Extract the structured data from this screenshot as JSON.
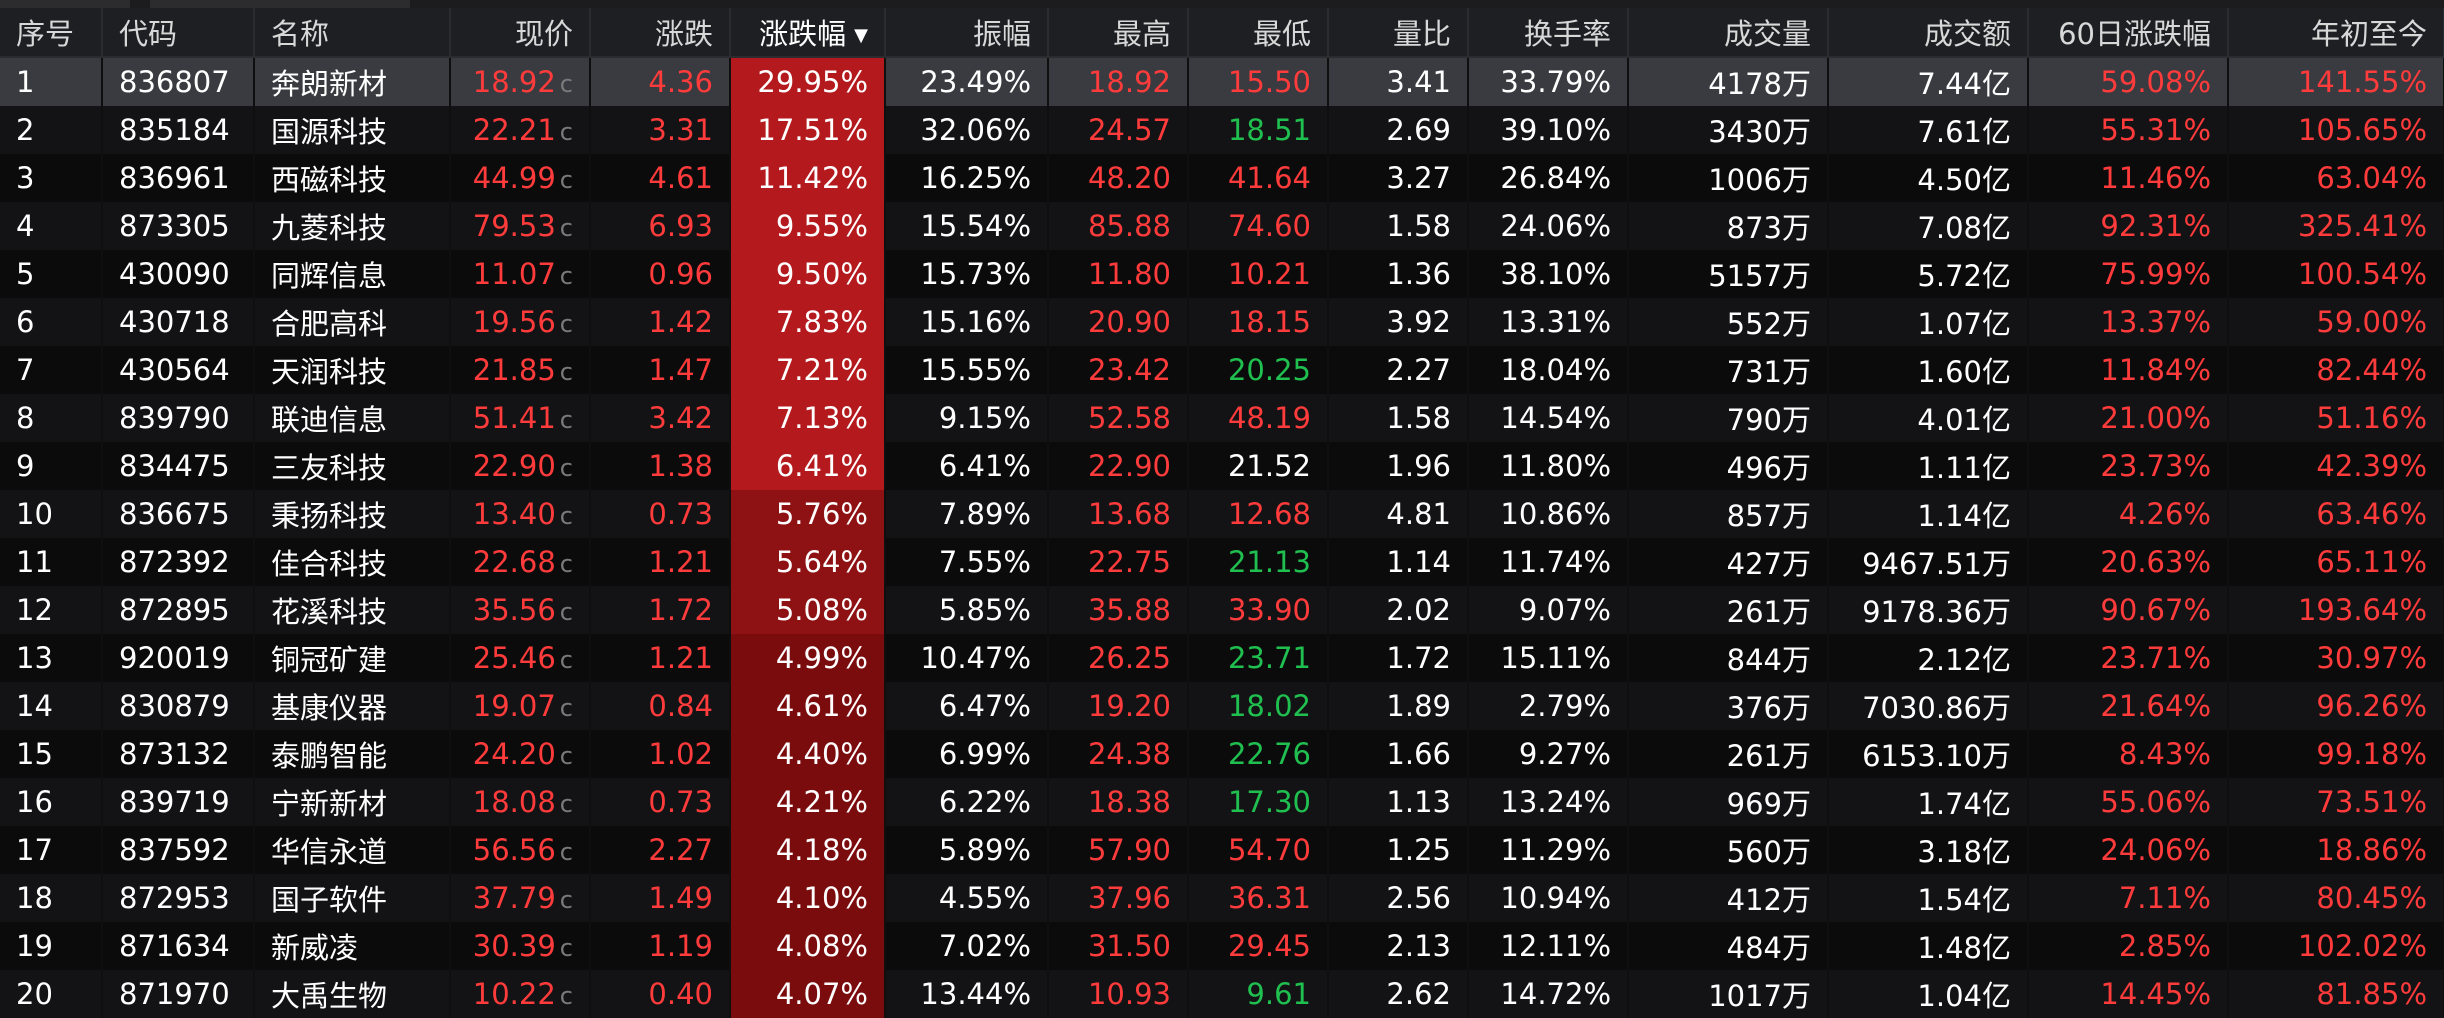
{
  "columns": [
    "序号",
    "代码",
    "名称",
    "现价",
    "涨跌",
    "涨跌幅",
    "振幅",
    "最高",
    "最低",
    "量比",
    "换手率",
    "成交量",
    "成交额",
    "60日涨跌幅",
    "年初至今"
  ],
  "sorted_column": "涨跌幅",
  "price_suffix": "c",
  "colors": {
    "up": "#ff3b3b",
    "down": "#20c050",
    "flat": "#ffffff",
    "heat_strong": "#b3191d",
    "heat_medium": "#8e1214",
    "heat_weak": "#7a0c0e",
    "header_bg": "#1e1f22",
    "row_selected": "#3a3b40"
  },
  "rows": [
    {
      "seq": "1",
      "code": "836807",
      "name": "奔朗新材",
      "price": "18.92",
      "change": "4.36",
      "pct": "29.95%",
      "amp": "23.49%",
      "high": "18.92",
      "low": "15.50",
      "lowDir": "up",
      "vr": "3.41",
      "turnover": "33.79%",
      "vol": "4178万",
      "amount": "7.44亿",
      "d60": "59.08%",
      "ytd": "141.55%",
      "heat": "strong"
    },
    {
      "seq": "2",
      "code": "835184",
      "name": "国源科技",
      "price": "22.21",
      "change": "3.31",
      "pct": "17.51%",
      "amp": "32.06%",
      "high": "24.57",
      "low": "18.51",
      "lowDir": "down",
      "vr": "2.69",
      "turnover": "39.10%",
      "vol": "3430万",
      "amount": "7.61亿",
      "d60": "55.31%",
      "ytd": "105.65%",
      "heat": "strong"
    },
    {
      "seq": "3",
      "code": "836961",
      "name": "西磁科技",
      "price": "44.99",
      "change": "4.61",
      "pct": "11.42%",
      "amp": "16.25%",
      "high": "48.20",
      "low": "41.64",
      "lowDir": "up",
      "vr": "3.27",
      "turnover": "26.84%",
      "vol": "1006万",
      "amount": "4.50亿",
      "d60": "11.46%",
      "ytd": "63.04%",
      "heat": "strong"
    },
    {
      "seq": "4",
      "code": "873305",
      "name": "九菱科技",
      "price": "79.53",
      "change": "6.93",
      "pct": "9.55%",
      "amp": "15.54%",
      "high": "85.88",
      "low": "74.60",
      "lowDir": "up",
      "vr": "1.58",
      "turnover": "24.06%",
      "vol": "873万",
      "amount": "7.08亿",
      "d60": "92.31%",
      "ytd": "325.41%",
      "heat": "strong"
    },
    {
      "seq": "5",
      "code": "430090",
      "name": "同辉信息",
      "price": "11.07",
      "change": "0.96",
      "pct": "9.50%",
      "amp": "15.73%",
      "high": "11.80",
      "low": "10.21",
      "lowDir": "up",
      "vr": "1.36",
      "turnover": "38.10%",
      "vol": "5157万",
      "amount": "5.72亿",
      "d60": "75.99%",
      "ytd": "100.54%",
      "heat": "strong"
    },
    {
      "seq": "6",
      "code": "430718",
      "name": "合肥高科",
      "price": "19.56",
      "change": "1.42",
      "pct": "7.83%",
      "amp": "15.16%",
      "high": "20.90",
      "low": "18.15",
      "lowDir": "up",
      "vr": "3.92",
      "turnover": "13.31%",
      "vol": "552万",
      "amount": "1.07亿",
      "d60": "13.37%",
      "ytd": "59.00%",
      "heat": "strong"
    },
    {
      "seq": "7",
      "code": "430564",
      "name": "天润科技",
      "price": "21.85",
      "change": "1.47",
      "pct": "7.21%",
      "amp": "15.55%",
      "high": "23.42",
      "low": "20.25",
      "lowDir": "down",
      "vr": "2.27",
      "turnover": "18.04%",
      "vol": "731万",
      "amount": "1.60亿",
      "d60": "11.84%",
      "ytd": "82.44%",
      "heat": "strong"
    },
    {
      "seq": "8",
      "code": "839790",
      "name": "联迪信息",
      "price": "51.41",
      "change": "3.42",
      "pct": "7.13%",
      "amp": "9.15%",
      "high": "52.58",
      "low": "48.19",
      "lowDir": "up",
      "vr": "1.58",
      "turnover": "14.54%",
      "vol": "790万",
      "amount": "4.01亿",
      "d60": "21.00%",
      "ytd": "51.16%",
      "heat": "strong"
    },
    {
      "seq": "9",
      "code": "834475",
      "name": "三友科技",
      "price": "22.90",
      "change": "1.38",
      "pct": "6.41%",
      "amp": "6.41%",
      "high": "22.90",
      "low": "21.52",
      "lowDir": "flat",
      "vr": "1.96",
      "turnover": "11.80%",
      "vol": "496万",
      "amount": "1.11亿",
      "d60": "23.73%",
      "ytd": "42.39%",
      "heat": "strong"
    },
    {
      "seq": "10",
      "code": "836675",
      "name": "秉扬科技",
      "price": "13.40",
      "change": "0.73",
      "pct": "5.76%",
      "amp": "7.89%",
      "high": "13.68",
      "low": "12.68",
      "lowDir": "up",
      "vr": "4.81",
      "turnover": "10.86%",
      "vol": "857万",
      "amount": "1.14亿",
      "d60": "4.26%",
      "ytd": "63.46%",
      "heat": "medium"
    },
    {
      "seq": "11",
      "code": "872392",
      "name": "佳合科技",
      "price": "22.68",
      "change": "1.21",
      "pct": "5.64%",
      "amp": "7.55%",
      "high": "22.75",
      "low": "21.13",
      "lowDir": "down",
      "vr": "1.14",
      "turnover": "11.74%",
      "vol": "427万",
      "amount": "9467.51万",
      "d60": "20.63%",
      "ytd": "65.11%",
      "heat": "medium"
    },
    {
      "seq": "12",
      "code": "872895",
      "name": "花溪科技",
      "price": "35.56",
      "change": "1.72",
      "pct": "5.08%",
      "amp": "5.85%",
      "high": "35.88",
      "low": "33.90",
      "lowDir": "up",
      "vr": "2.02",
      "turnover": "9.07%",
      "vol": "261万",
      "amount": "9178.36万",
      "d60": "90.67%",
      "ytd": "193.64%",
      "heat": "medium"
    },
    {
      "seq": "13",
      "code": "920019",
      "name": "铜冠矿建",
      "price": "25.46",
      "change": "1.21",
      "pct": "4.99%",
      "amp": "10.47%",
      "high": "26.25",
      "low": "23.71",
      "lowDir": "down",
      "vr": "1.72",
      "turnover": "15.11%",
      "vol": "844万",
      "amount": "2.12亿",
      "d60": "23.71%",
      "ytd": "30.97%",
      "heat": "weak"
    },
    {
      "seq": "14",
      "code": "830879",
      "name": "基康仪器",
      "price": "19.07",
      "change": "0.84",
      "pct": "4.61%",
      "amp": "6.47%",
      "high": "19.20",
      "low": "18.02",
      "lowDir": "down",
      "vr": "1.89",
      "turnover": "2.79%",
      "vol": "376万",
      "amount": "7030.86万",
      "d60": "21.64%",
      "ytd": "96.26%",
      "heat": "weak"
    },
    {
      "seq": "15",
      "code": "873132",
      "name": "泰鹏智能",
      "price": "24.20",
      "change": "1.02",
      "pct": "4.40%",
      "amp": "6.99%",
      "high": "24.38",
      "low": "22.76",
      "lowDir": "down",
      "vr": "1.66",
      "turnover": "9.27%",
      "vol": "261万",
      "amount": "6153.10万",
      "d60": "8.43%",
      "ytd": "99.18%",
      "heat": "weak"
    },
    {
      "seq": "16",
      "code": "839719",
      "name": "宁新新材",
      "price": "18.08",
      "change": "0.73",
      "pct": "4.21%",
      "amp": "6.22%",
      "high": "18.38",
      "low": "17.30",
      "lowDir": "down",
      "vr": "1.13",
      "turnover": "13.24%",
      "vol": "969万",
      "amount": "1.74亿",
      "d60": "55.06%",
      "ytd": "73.51%",
      "heat": "weak"
    },
    {
      "seq": "17",
      "code": "837592",
      "name": "华信永道",
      "price": "56.56",
      "change": "2.27",
      "pct": "4.18%",
      "amp": "5.89%",
      "high": "57.90",
      "low": "54.70",
      "lowDir": "up",
      "vr": "1.25",
      "turnover": "11.29%",
      "vol": "560万",
      "amount": "3.18亿",
      "d60": "24.06%",
      "ytd": "18.86%",
      "heat": "weak"
    },
    {
      "seq": "18",
      "code": "872953",
      "name": "国子软件",
      "price": "37.79",
      "change": "1.49",
      "pct": "4.10%",
      "amp": "4.55%",
      "high": "37.96",
      "low": "36.31",
      "lowDir": "up",
      "vr": "2.56",
      "turnover": "10.94%",
      "vol": "412万",
      "amount": "1.54亿",
      "d60": "7.11%",
      "ytd": "80.45%",
      "heat": "weak"
    },
    {
      "seq": "19",
      "code": "871634",
      "name": "新威凌",
      "price": "30.39",
      "change": "1.19",
      "pct": "4.08%",
      "amp": "7.02%",
      "high": "31.50",
      "low": "29.45",
      "lowDir": "up",
      "vr": "2.13",
      "turnover": "12.11%",
      "vol": "484万",
      "amount": "1.48亿",
      "d60": "2.85%",
      "ytd": "102.02%",
      "heat": "weak"
    },
    {
      "seq": "20",
      "code": "871970",
      "name": "大禹生物",
      "price": "10.22",
      "change": "0.40",
      "pct": "4.07%",
      "amp": "13.44%",
      "high": "10.93",
      "low": "9.61",
      "lowDir": "down",
      "vr": "2.62",
      "turnover": "14.72%",
      "vol": "1017万",
      "amount": "1.04亿",
      "d60": "14.45%",
      "ytd": "81.85%",
      "heat": "weak"
    }
  ]
}
